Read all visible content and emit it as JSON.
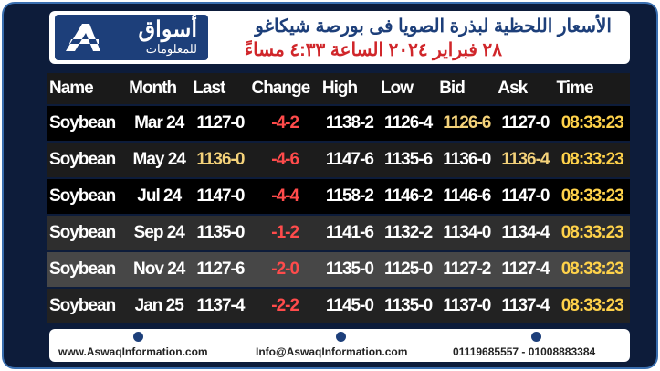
{
  "header": {
    "title_line1": "الأسعار اللحظية لبذرة الصويا فى بورصة شيكاغو",
    "title_line2": "٢٨ فبراير ٢٠٢٤ الساعة ٤:٣٣ مساءً"
  },
  "logo": {
    "name": "أسواق",
    "subtitle": "للمعلومات"
  },
  "table": {
    "columns": [
      "Name",
      "Month",
      "Last",
      "Change",
      "High",
      "Low",
      "Bid",
      "Ask",
      "Time"
    ],
    "rows": [
      [
        "Soybean",
        "Mar 24",
        "1127-0",
        "-4-2",
        "1138-2",
        "1126-4",
        "1126-6",
        "1127-0",
        "08:33:23"
      ],
      [
        "Soybean",
        "May 24",
        "1136-0",
        "-4-6",
        "1147-6",
        "1135-6",
        "1136-0",
        "1136-4",
        "08:33:23"
      ],
      [
        "Soybean",
        "Jul 24",
        "1147-0",
        "-4-4",
        "1158-2",
        "1146-2",
        "1146-6",
        "1147-0",
        "08:33:23"
      ],
      [
        "Soybean",
        "Sep 24",
        "1135-0",
        "-1-2",
        "1141-6",
        "1132-2",
        "1134-0",
        "1134-4",
        "08:33:23"
      ],
      [
        "Soybean",
        "Nov 24",
        "1127-6",
        "-2-0",
        "1135-0",
        "1125-0",
        "1127-2",
        "1127-4",
        "08:33:23"
      ],
      [
        "Soybean",
        "Jan 25",
        "1137-4",
        "-2-2",
        "1145-0",
        "1135-0",
        "1137-0",
        "1137-4",
        "08:33:23"
      ]
    ]
  },
  "footer": {
    "website": "www.AswaqInformation.com",
    "email": "Info@AswaqInformation.com",
    "phones": "01119685557 - 01008883384"
  }
}
